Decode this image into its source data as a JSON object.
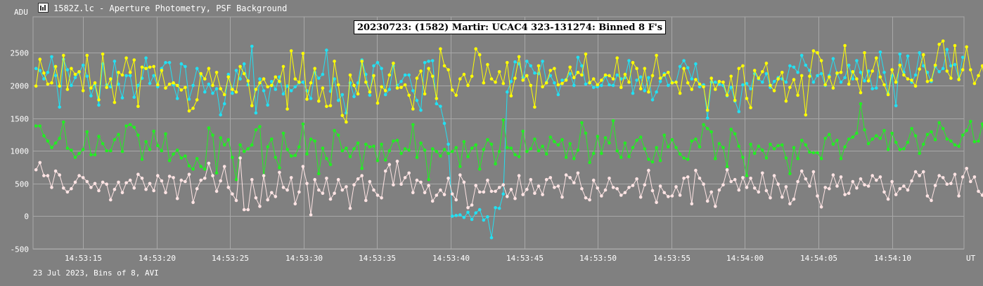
{
  "window": {
    "title": "1582Z.lc - Aperture Photometry, PSF Background",
    "icon": "chart-window-icon"
  },
  "footer": {
    "note": "23 Jul 2023, Bins of 8, AVI"
  },
  "colors": {
    "background": "#808080",
    "grid": "#a8a8a8",
    "series_cyan": "#22e0f2",
    "series_yellow": "#ffff00",
    "series_green": "#22ee22",
    "series_pink": "#ffe4e4"
  },
  "chart_data": {
    "type": "line",
    "title": "20230723: (1582) Martir: UCAC4 323-131274: Binned 8 F's",
    "ylabel": "ADU",
    "xlabel": "UT",
    "ylim": [
      -500,
      3050
    ],
    "xlim": [
      "14:53:11.6",
      "14:54:14.9"
    ],
    "yticks": [
      -500,
      0,
      500,
      1000,
      1500,
      2000,
      2500
    ],
    "xticks": [
      "14:53:15",
      "14:53:20",
      "14:53:25",
      "14:53:30",
      "14:53:35",
      "14:53:40",
      "14:53:45",
      "14:53:50",
      "14:53:55",
      "14:54:00",
      "14:54:05",
      "14:54:10"
    ],
    "grid": true,
    "legend": "none",
    "x_start": "14:53:11.8",
    "x_step_s": 0.267,
    "series": [
      {
        "color": "#22e0f2",
        "values": [
          2260,
          2230,
          2100,
          2200,
          2440,
          2150,
          1670,
          2400,
          2240,
          2000,
          2120,
          2200,
          2310,
          2140,
          1840,
          2010,
          1700,
          2330,
          2010,
          1980,
          2370,
          2020,
          1810,
          2150,
          2150,
          1820,
          2000,
          2110,
          2420,
          2030,
          2150,
          1980,
          2260,
          2350,
          2350,
          2010,
          1800,
          2330,
          2290,
          1790,
          2000,
          2260,
          2150,
          1900,
          2020,
          1880,
          1950,
          1550,
          1720,
          2170,
          1880,
          2230,
          2100,
          2330,
          2010,
          2600,
          1580,
          2100,
          1920,
          1700,
          2060,
          1940,
          2130,
          1870,
          1990,
          1920,
          1980,
          2040,
          2050,
          1920,
          1800,
          2200,
          2110,
          2170,
          2540,
          1910,
          2100,
          1770,
          1860,
          1580,
          2040,
          1830,
          2040,
          2390,
          2170,
          1850,
          2300,
          2350,
          2260,
          1860,
          1940,
          2300,
          2000,
          2060,
          2160,
          2160,
          1920,
          1770,
          1620,
          2350,
          2370,
          2380,
          1720,
          1680,
          1420,
          1100,
          0,
          10,
          20,
          -20,
          60,
          -50,
          50,
          100,
          -60,
          -10,
          -330,
          130,
          120,
          340,
          1900,
          2060,
          2360,
          2330,
          2120,
          2370,
          2300,
          2190,
          2180,
          2370,
          2050,
          2150,
          2040,
          1860,
          2080,
          2090,
          2180,
          2000,
          2430,
          2300,
          2020,
          2050,
          1970,
          1980,
          2000,
          2140,
          2010,
          2000,
          2160,
          2100,
          2120,
          2380,
          1880,
          2080,
          2130,
          1920,
          2120,
          1780,
          1900,
          2060,
          2180,
          2000,
          2050,
          2050,
          2290,
          2380,
          2270,
          2100,
          2330,
          1980,
          2010,
          1500,
          2050,
          2050,
          2020,
          2000,
          1840,
          1970,
          1760,
          1600,
          2010,
          2030,
          1950,
          2180,
          2100,
          2050,
          2180,
          1970,
          2060,
          2120,
          2100,
          2050,
          2300,
          2280,
          2200,
          2460,
          2310,
          2230,
          2050,
          2150,
          2180,
          2000,
          2150,
          2410,
          2180,
          2050,
          2120,
          2310,
          2100,
          2380,
          2200,
          2070,
          2220,
          1950,
          1960,
          2510,
          2200,
          1880,
          2150,
          1690,
          2480,
          2200,
          2450,
          2050,
          2160,
          2500,
          2300,
          2200,
          2060,
          2290,
          2210,
          2260,
          2550,
          2300,
          2320,
          2100,
          2430
        ]
      },
      {
        "color": "#ffff00",
        "values": [
          1990,
          2400,
          2190,
          2020,
          2040,
          2290,
          1990,
          2460,
          1940,
          2260,
          2170,
          2210,
          1920,
          2460,
          1960,
          2040,
          1780,
          2480,
          1970,
          2100,
          1740,
          2200,
          2160,
          2420,
          2200,
          2390,
          1680,
          2280,
          2260,
          2280,
          2290,
          2010,
          2230,
          1960,
          2020,
          2040,
          2000,
          1930,
          1970,
          1610,
          1650,
          1780,
          2180,
          2100,
          2260,
          2000,
          2200,
          1950,
          1860,
          2130,
          1940,
          1900,
          2290,
          2180,
          2070,
          1690,
          1940,
          2040,
          2100,
          1980,
          2000,
          2130,
          2060,
          2290,
          1640,
          2530,
          2100,
          2050,
          2490,
          1790,
          2040,
          2260,
          1760,
          1960,
          1680,
          1690,
          2370,
          2010,
          1540,
          1440,
          2160,
          2000,
          1870,
          2370,
          2050,
          1900,
          2150,
          1730,
          1980,
          1920,
          2160,
          2340,
          1960,
          1970,
          2010,
          1850,
          1640,
          2110,
          2220,
          1870,
          2260,
          2140,
          1800,
          2560,
          2300,
          2240,
          1930,
          1850,
          2100,
          2170,
          2000,
          2140,
          2560,
          2470,
          2040,
          2320,
          2100,
          2050,
          2210,
          2030,
          2350,
          1840,
          2110,
          2440,
          2080,
          2150,
          2000,
          1670,
          2300,
          1980,
          2040,
          2230,
          2260,
          2010,
          2030,
          2080,
          2280,
          2120,
          2200,
          2160,
          2480,
          2040,
          2100,
          2010,
          2080,
          2160,
          2150,
          2100,
          2420,
          1970,
          2170,
          2050,
          2350,
          2260,
          1950,
          2260,
          1900,
          2150,
          2460,
          2110,
          2160,
          2200,
          2040,
          2050,
          1880,
          2260,
          2040,
          1940,
          2090,
          2020,
          1980,
          1620,
          2110,
          1940,
          2060,
          2050,
          1850,
          2140,
          1770,
          2260,
          2300,
          1800,
          1660,
          2230,
          2110,
          2210,
          2340,
          2000,
          1920,
          2100,
          2200,
          1760,
          1970,
          2090,
          1850,
          2150,
          1550,
          2140,
          2530,
          2500,
          2380,
          2010,
          2130,
          1960,
          2190,
          2200,
          2610,
          2020,
          2210,
          2100,
          1890,
          2500,
          2070,
          2220,
          2420,
          2130,
          2010,
          1860,
          2240,
          2050,
          2310,
          2160,
          2100,
          2080,
          1990,
          2250,
          2470,
          2060,
          2080,
          2310,
          2630,
          2680,
          2220,
          2110,
          2610,
          2090,
          2240,
          2590,
          2240,
          2030,
          2150,
          2300,
          1920,
          2150
        ]
      },
      {
        "color": "#22ee22",
        "values": [
          1380,
          1380,
          1230,
          1150,
          1050,
          1120,
          1190,
          1440,
          1040,
          1010,
          900,
          960,
          1020,
          1290,
          940,
          940,
          1220,
          1110,
          1000,
          1000,
          1170,
          1250,
          990,
          1380,
          1400,
          1360,
          1240,
          870,
          1140,
          1020,
          1300,
          1080,
          1000,
          1260,
          850,
          950,
          1010,
          890,
          920,
          770,
          720,
          880,
          760,
          720,
          1350,
          1240,
          660,
          1200,
          1090,
          1170,
          900,
          560,
          1090,
          990,
          1030,
          1090,
          1320,
          1370,
          620,
          1060,
          1180,
          900,
          740,
          1270,
          1020,
          920,
          930,
          1060,
          1410,
          950,
          1180,
          1150,
          650,
          1040,
          880,
          790,
          1310,
          1240,
          1000,
          1040,
          910,
          1030,
          1120,
          730,
          1100,
          1060,
          1070,
          850,
          1100,
          860,
          1000,
          1150,
          1160,
          960,
          1030,
          1010,
          1400,
          900,
          1120,
          1010,
          560,
          1030,
          990,
          920,
          1020,
          960,
          990,
          1050,
          760,
          1140,
          910,
          1040,
          1090,
          720,
          1020,
          1170,
          1100,
          800,
          990,
          1470,
          1050,
          1040,
          940,
          910,
          1300,
          990,
          1030,
          1180,
          1000,
          1070,
          950,
          1210,
          1140,
          1090,
          1170,
          900,
          1110,
          880,
          1010,
          1430,
          1270,
          820,
          960,
          1220,
          960,
          1200,
          1120,
          1460,
          1000,
          900,
          1120,
          910,
          1050,
          1160,
          1210,
          1030,
          870,
          830,
          1050,
          850,
          1240,
          1060,
          1170,
          1050,
          950,
          890,
          870,
          1150,
          1180,
          1060,
          1400,
          1340,
          1290,
          880,
          1110,
          1050,
          760,
          1330,
          1260,
          1070,
          900,
          620,
          1100,
          960,
          1070,
          1010,
          890,
          1100,
          1030,
          1080,
          1090,
          890,
          650,
          1050,
          880,
          1160,
          1090,
          980,
          970,
          970,
          880,
          1190,
          1250,
          1100,
          1160,
          880,
          1060,
          1180,
          1210,
          1270,
          1720,
          1320,
          1110,
          1180,
          1230,
          1190,
          1310,
          1020,
          1270,
          1130,
          1020,
          1030,
          1130,
          1340,
          1230,
          960,
          1100,
          1250,
          1290,
          1170,
          1430,
          1340,
          1180,
          1150,
          1090,
          1070,
          1240,
          1310,
          1450,
          1140,
          1150,
          1410,
          1020,
          1160,
          1060,
          1370,
          1300,
          1380,
          1500,
          1500
        ]
      },
      {
        "color": "#ffe4e4",
        "values": [
          710,
          820,
          620,
          620,
          440,
          690,
          630,
          430,
          370,
          420,
          520,
          620,
          590,
          530,
          440,
          500,
          390,
          520,
          490,
          250,
          410,
          520,
          360,
          510,
          550,
          430,
          640,
          580,
          410,
          500,
          390,
          620,
          540,
          360,
          610,
          590,
          270,
          550,
          530,
          640,
          210,
          420,
          550,
          580,
          810,
          620,
          380,
          540,
          760,
          440,
          340,
          240,
          890,
          100,
          100,
          560,
          280,
          150,
          620,
          250,
          360,
          300,
          670,
          440,
          400,
          590,
          190,
          370,
          760,
          500,
          20,
          560,
          400,
          350,
          580,
          260,
          350,
          560,
          400,
          450,
          120,
          480,
          570,
          620,
          240,
          530,
          400,
          320,
          280,
          690,
          790,
          480,
          840,
          490,
          590,
          660,
          360,
          550,
          520,
          360,
          470,
          230,
          320,
          400,
          330,
          580,
          340,
          250,
          630,
          520,
          130,
          170,
          470,
          370,
          370,
          550,
          380,
          380,
          440,
          480,
          300,
          410,
          270,
          620,
          330,
          410,
          560,
          350,
          460,
          330,
          560,
          590,
          440,
          460,
          290,
          630,
          590,
          510,
          660,
          420,
          280,
          250,
          550,
          430,
          310,
          400,
          580,
          440,
          420,
          320,
          360,
          440,
          470,
          570,
          290,
          480,
          700,
          390,
          210,
          460,
          360,
          300,
          310,
          450,
          320,
          580,
          600,
          190,
          700,
          580,
          490,
          230,
          370,
          150,
          400,
          480,
          710,
          530,
          560,
          400,
          590,
          440,
          580,
          430,
          370,
          660,
          390,
          280,
          620,
          490,
          290,
          450,
          190,
          260,
          530,
          690,
          570,
          460,
          680,
          310,
          140,
          440,
          420,
          630,
          460,
          600,
          330,
          350,
          530,
          430,
          570,
          480,
          460,
          620,
          550,
          600,
          370,
          260,
          530,
          330,
          420,
          460,
          400,
          540,
          680,
          620,
          680,
          310,
          240,
          470,
          620,
          590,
          490,
          500,
          640,
          310,
          600,
          730,
          530,
          600,
          380,
          320,
          550,
          630,
          690,
          430,
          370,
          680,
          740,
          810,
          760,
          740,
          390,
          560,
          520,
          800,
          850,
          660,
          580
        ]
      }
    ]
  }
}
